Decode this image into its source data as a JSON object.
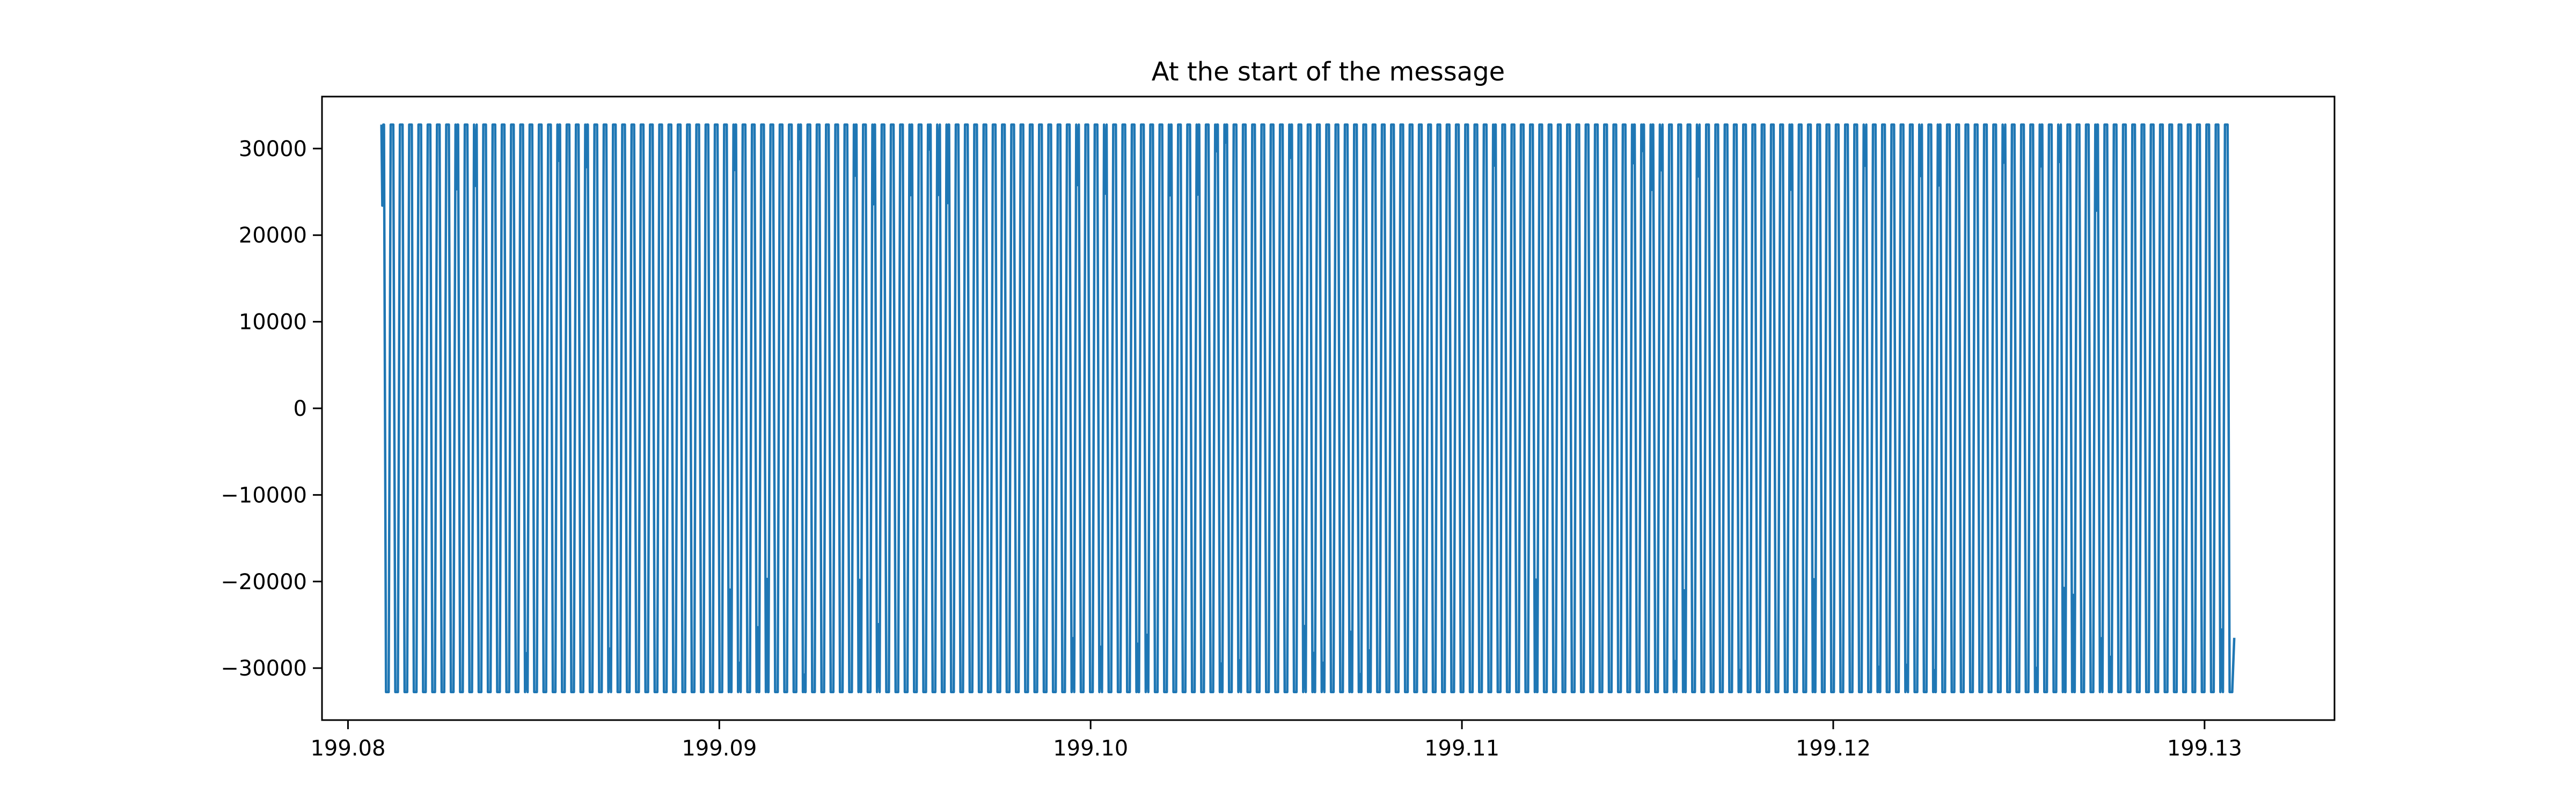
{
  "chart_data": {
    "type": "line",
    "title": "At the start of the message",
    "xlabel": "",
    "ylabel": "",
    "xlim": [
      199.0793,
      199.1335
    ],
    "ylim": [
      -36000,
      36000
    ],
    "x_range": [
      199.0809,
      199.1308
    ],
    "x_ticks": [
      "199.08",
      "199.09",
      "199.10",
      "199.11",
      "199.12",
      "199.13"
    ],
    "x_tick_values": [
      199.08,
      199.09,
      199.1,
      199.11,
      199.12,
      199.13
    ],
    "y_ticks": [
      "−30000",
      "−20000",
      "−10000",
      "0",
      "10000",
      "20000",
      "30000"
    ],
    "y_tick_values": [
      -30000,
      -20000,
      -10000,
      0,
      10000,
      20000,
      30000
    ],
    "clip_high": 32767,
    "clip_low": -32768,
    "cycles": 200,
    "start_value": 32767,
    "end_value": -26500,
    "grid": false,
    "series": [
      {
        "color": "#1f77b4"
      }
    ]
  }
}
